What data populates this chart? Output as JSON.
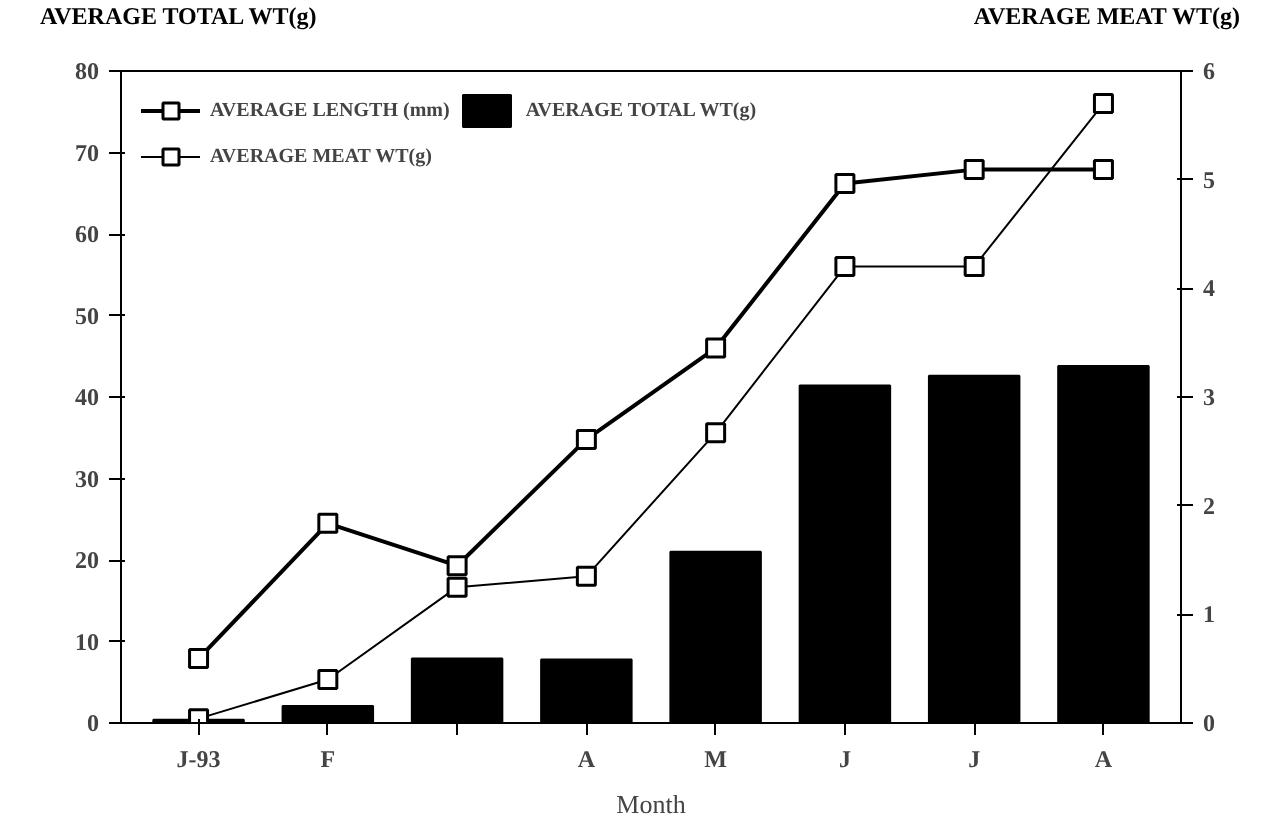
{
  "chart_data": {
    "type": "bar",
    "xlabel": "Month",
    "ylabel": "AVERAGE TOTAL WT(g)",
    "y2label": "AVERAGE MEAT WT(g)",
    "categories": [
      "J-93",
      "F",
      null,
      "A",
      "M",
      "J",
      "J",
      "A"
    ],
    "series": [
      {
        "name": "AVERAGE TOTAL WT(g)",
        "color": "#000000",
        "values": [
          0.4,
          2.1,
          7.9,
          7.8,
          21,
          41.4,
          42.6,
          43.8
        ]
      },
      {
        "name": "AVERAGE LENGTH (mm)",
        "type": "line",
        "color": "#000000",
        "values": [
          7.9,
          24.5,
          19.3,
          34.8,
          46,
          66.2,
          67.9,
          67.9
        ]
      },
      {
        "name": "AVERAGE MEAT WT(g)",
        "type": "line",
        "color": "#000000",
        "axis": "y2",
        "values": [
          0.04,
          0.4,
          1.25,
          1.35,
          2.67,
          4.2,
          4.2,
          5.7
        ]
      }
    ],
    "ylim": [
      0,
      80
    ],
    "yticks": [
      0,
      10,
      20,
      30,
      40,
      50,
      60,
      70,
      80
    ],
    "y2lim": [
      0,
      6
    ],
    "y2ticks": [
      0,
      1,
      2,
      3,
      4,
      5,
      6
    ],
    "grid": false,
    "legend": "top left",
    "marker": "square",
    "line_style": "solid"
  }
}
